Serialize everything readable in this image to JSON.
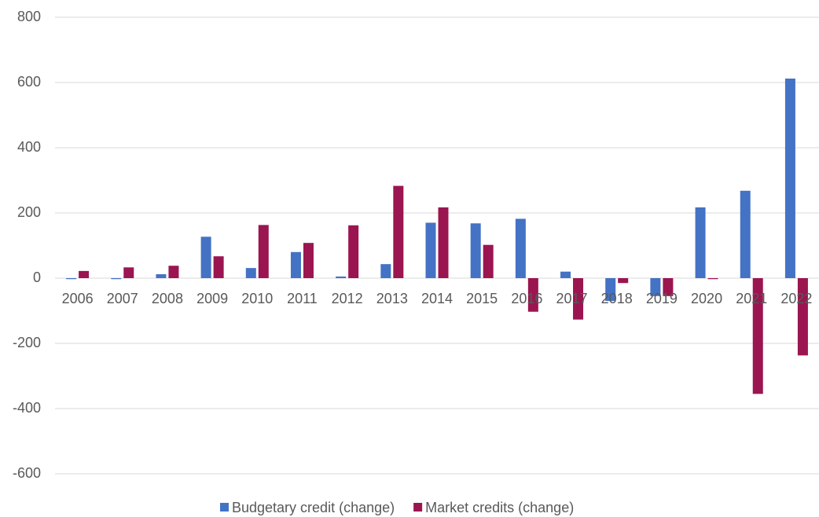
{
  "chart_data": {
    "type": "bar",
    "categories": [
      "2006",
      "2007",
      "2008",
      "2009",
      "2010",
      "2011",
      "2012",
      "2013",
      "2014",
      "2015",
      "2016",
      "2017",
      "2018",
      "2019",
      "2020",
      "2021",
      "2022"
    ],
    "series": [
      {
        "name": "Budgetary credit (change)",
        "color": "#4472c4",
        "values": [
          -3,
          -3,
          12,
          127,
          31,
          80,
          5,
          43,
          170,
          168,
          182,
          20,
          -70,
          -55,
          217,
          268,
          612
        ]
      },
      {
        "name": "Market credits (change)",
        "color": "#9b1550",
        "values": [
          22,
          33,
          38,
          67,
          163,
          108,
          162,
          283,
          217,
          102,
          -103,
          -127,
          -15,
          -55,
          -3,
          -355,
          -237
        ]
      }
    ],
    "ylim": [
      -600,
      800
    ],
    "yticks": [
      -600,
      -400,
      -200,
      0,
      200,
      400,
      600,
      800
    ],
    "grid": true,
    "legend": "bottom"
  }
}
